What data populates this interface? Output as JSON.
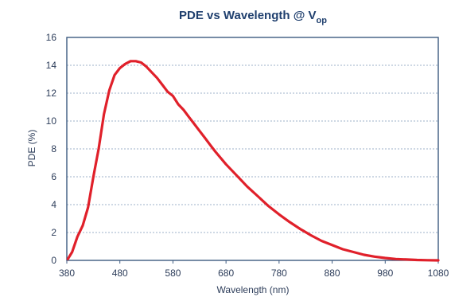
{
  "colors": {
    "title": "#1f3f6e",
    "axis": "#3d5a80",
    "grid": "#7f97b8",
    "text": "#2d3d5a",
    "series": "#e0202a"
  },
  "chart_data": {
    "type": "line",
    "title_main": "PDE vs Wavelength @ V",
    "title_subscript": "op",
    "xlabel": "Wavelength (nm)",
    "ylabel": "PDE (%)",
    "xlim": [
      380,
      1080
    ],
    "ylim": [
      0,
      16
    ],
    "xticks": [
      380,
      480,
      580,
      680,
      780,
      880,
      980,
      1080
    ],
    "yticks": [
      0,
      2,
      4,
      6,
      8,
      10,
      12,
      14,
      16
    ],
    "grid": "horizontal-dashed",
    "series": [
      {
        "x": [
          382,
          390,
          400,
          410,
          420,
          430,
          440,
          450,
          460,
          470,
          480,
          490,
          500,
          510,
          520,
          530,
          540,
          550,
          560,
          570,
          580,
          590,
          600,
          610,
          620,
          630,
          640,
          650,
          660,
          680,
          700,
          720,
          740,
          760,
          780,
          800,
          820,
          840,
          860,
          880,
          900,
          920,
          940,
          960,
          980,
          1000,
          1020,
          1040,
          1060,
          1080
        ],
        "y": [
          0.1,
          0.6,
          1.7,
          2.5,
          3.8,
          6.0,
          8.0,
          10.5,
          12.2,
          13.3,
          13.8,
          14.1,
          14.3,
          14.3,
          14.2,
          13.9,
          13.5,
          13.1,
          12.6,
          12.1,
          11.8,
          11.2,
          10.8,
          10.3,
          9.8,
          9.3,
          8.8,
          8.3,
          7.8,
          6.9,
          6.1,
          5.3,
          4.6,
          3.9,
          3.3,
          2.75,
          2.25,
          1.8,
          1.4,
          1.1,
          0.8,
          0.6,
          0.4,
          0.27,
          0.17,
          0.1,
          0.06,
          0.03,
          0.01,
          0.0
        ]
      }
    ]
  }
}
